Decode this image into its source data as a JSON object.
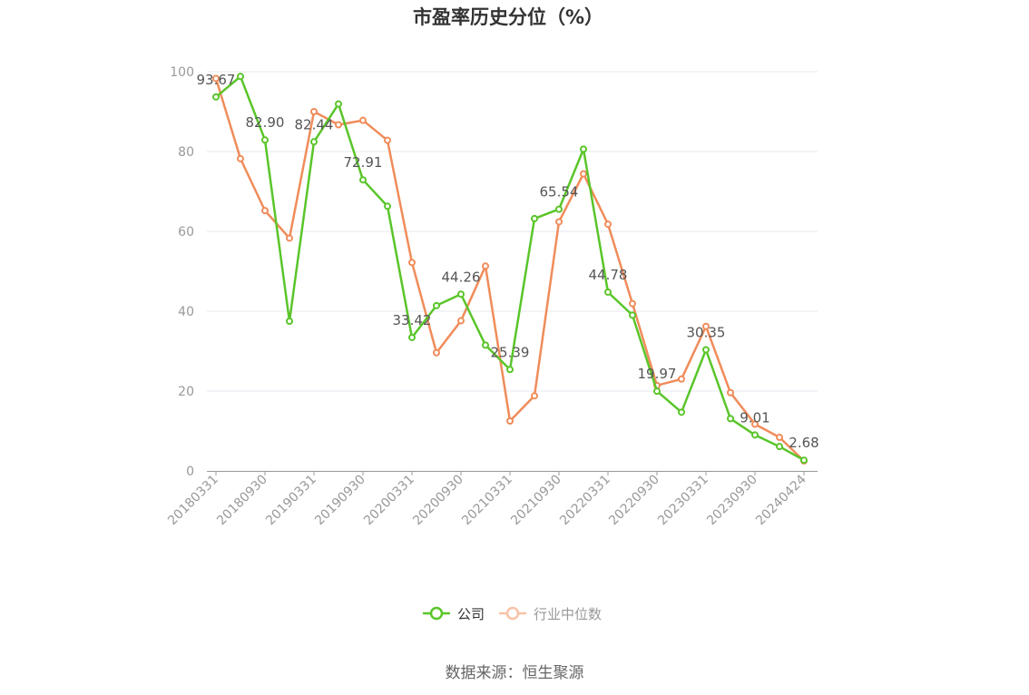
{
  "chart_data": {
    "type": "line",
    "title": "市盈率历史分位（%）",
    "source": "数据来源：恒生聚源",
    "ylim": [
      0,
      100
    ],
    "yticks": [
      "0",
      "20",
      "40",
      "60",
      "80",
      "100"
    ],
    "x": [
      "20180331",
      "20180630",
      "20180930",
      "20181231",
      "20190331",
      "20190630",
      "20190930",
      "20191231",
      "20200331",
      "20200630",
      "20200930",
      "20201231",
      "20210331",
      "20210630",
      "20210930",
      "20211231",
      "20220331",
      "20220630",
      "20220930",
      "20221231",
      "20230331",
      "20230630",
      "20230930",
      "20231231",
      "20240424"
    ],
    "xtick_labels": [
      "20180331",
      "20180930",
      "20190331",
      "20190930",
      "20200331",
      "20200930",
      "20210331",
      "20210930",
      "20220331",
      "20220930",
      "20230331",
      "20230930",
      "20240424"
    ],
    "series": [
      {
        "name": "公司",
        "color": "#5ac52a",
        "values": [
          93.67,
          98.8,
          82.9,
          37.5,
          82.44,
          91.9,
          72.91,
          66.3,
          33.42,
          41.4,
          44.26,
          31.5,
          25.39,
          63.2,
          65.54,
          80.6,
          44.78,
          39.0,
          19.97,
          14.7,
          30.35,
          13.1,
          9.01,
          6.1,
          2.68
        ]
      },
      {
        "name": "行业中位数",
        "color": "#f08c5a",
        "values": [
          98.3,
          78.2,
          65.2,
          58.3,
          90.0,
          86.7,
          87.8,
          82.8,
          52.2,
          29.6,
          37.6,
          51.3,
          12.5,
          18.8,
          62.4,
          74.4,
          61.8,
          41.9,
          21.4,
          23.0,
          36.2,
          19.6,
          11.7,
          8.4,
          2.5
        ]
      }
    ],
    "data_labels": [
      {
        "index": 0,
        "text": "93.67"
      },
      {
        "index": 2,
        "text": "82.90"
      },
      {
        "index": 4,
        "text": "82.44"
      },
      {
        "index": 6,
        "text": "72.91"
      },
      {
        "index": 8,
        "text": "33.42"
      },
      {
        "index": 10,
        "text": "44.26"
      },
      {
        "index": 12,
        "text": "25.39"
      },
      {
        "index": 14,
        "text": "65.54"
      },
      {
        "index": 16,
        "text": "44.78"
      },
      {
        "index": 18,
        "text": "19.97"
      },
      {
        "index": 20,
        "text": "30.35"
      },
      {
        "index": 22,
        "text": "9.01"
      },
      {
        "index": 24,
        "text": "2.68"
      }
    ],
    "grid": true,
    "legend_position": "bottom-center"
  }
}
